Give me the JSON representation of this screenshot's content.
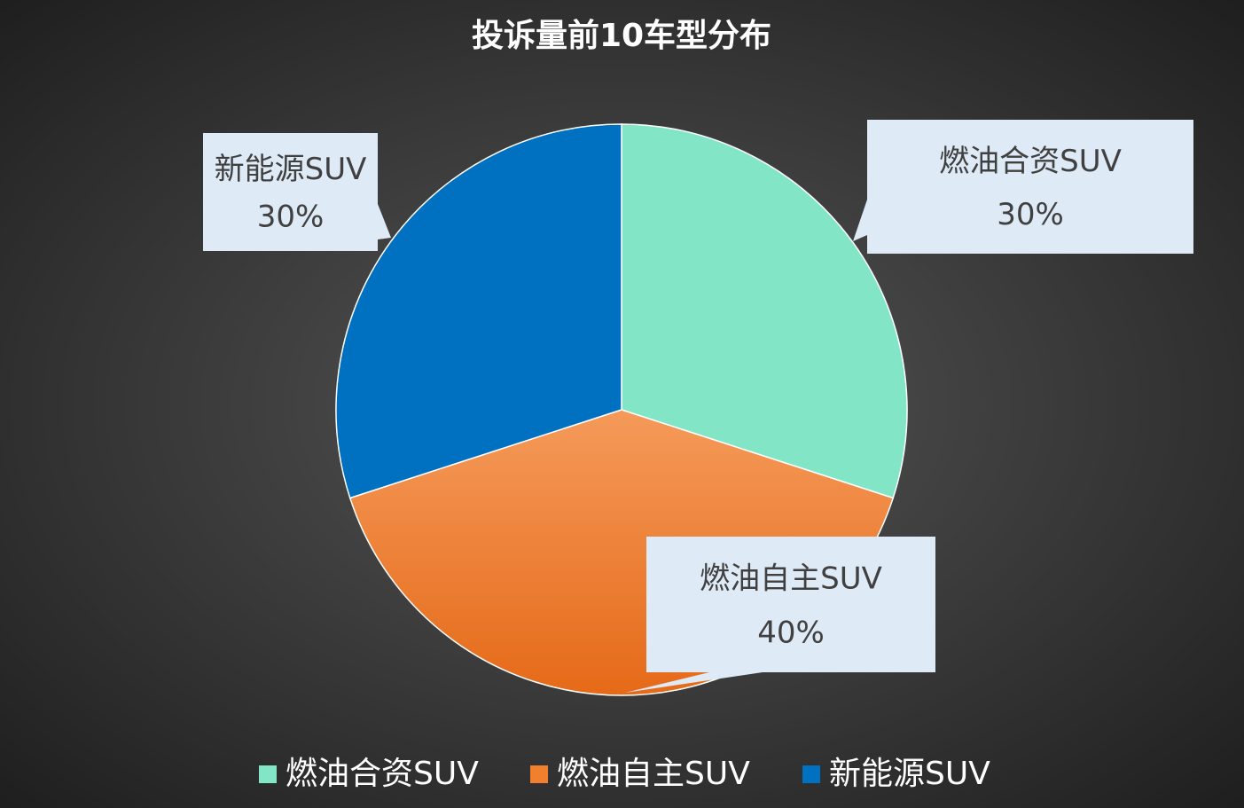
{
  "chart_data": {
    "type": "pie",
    "title": "投诉量前10车型分布",
    "categories": [
      "燃油合资SUV",
      "燃油自主SUV",
      "新能源SUV"
    ],
    "values": [
      30,
      40,
      30
    ],
    "value_labels": [
      "30%",
      "40%",
      "30%"
    ],
    "colors": [
      "#82e6c6",
      "#f07f2e",
      "#0070c0"
    ],
    "legend": "bottom"
  }
}
